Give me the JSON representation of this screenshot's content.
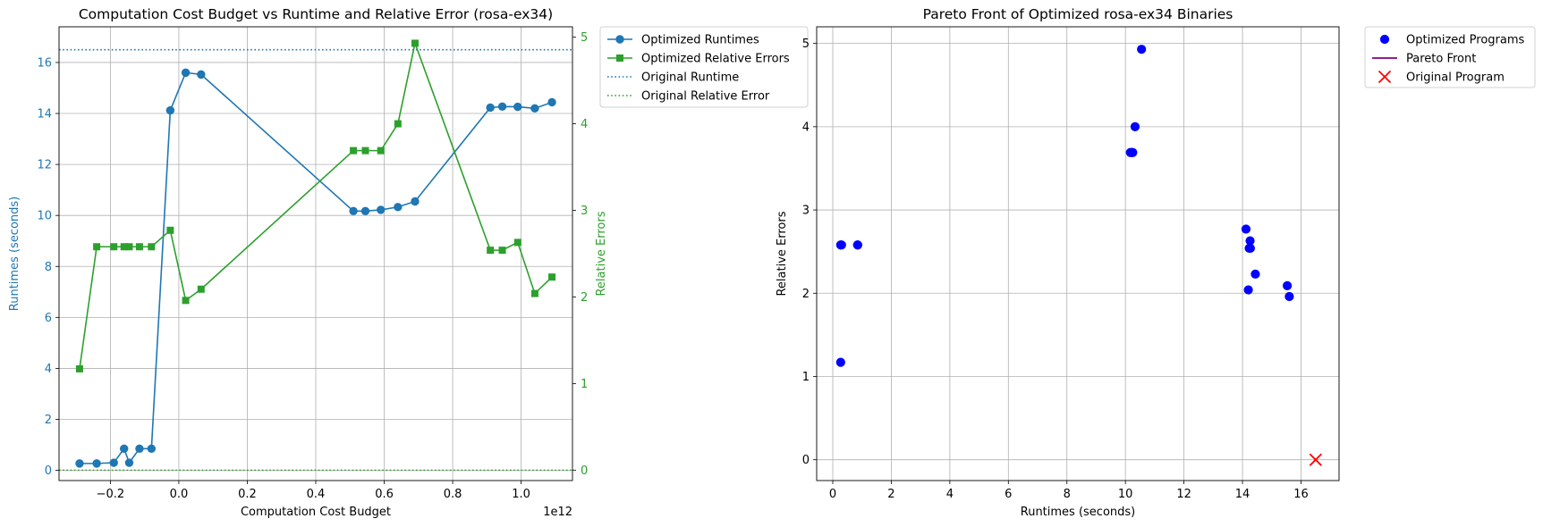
{
  "colors": {
    "runtime": "#1f77b4",
    "error": "#2ca02c",
    "scatter": "#0000ff",
    "pareto": "#800080",
    "original": "#ff0000",
    "grid": "#b0b0b0"
  },
  "chart_data": [
    {
      "type": "line",
      "title": "Computation Cost Budget vs Runtime and Relative Error (rosa-ex34)",
      "xlabel": "Computation Cost Budget",
      "x_offset_label": "1e12",
      "ylabel_left": "Runtimes (seconds)",
      "ylabel_right": "Relative Errors",
      "xlim": [
        -0.35,
        1.15
      ],
      "ylim_left": [
        -0.4,
        17.4
      ],
      "ylim_right": [
        -0.12,
        5.12
      ],
      "xticks": [
        -0.2,
        0.0,
        0.2,
        0.4,
        0.6,
        0.8,
        1.0
      ],
      "xtick_labels": [
        "−0.2",
        "0.0",
        "0.2",
        "0.4",
        "0.6",
        "0.8",
        "1.0"
      ],
      "yticks_left": [
        0,
        2,
        4,
        6,
        8,
        10,
        12,
        14,
        16
      ],
      "yticks_right": [
        0,
        1,
        2,
        3,
        4,
        5
      ],
      "grid": true,
      "legend_position": "outside-right",
      "x": [
        -0.29,
        -0.24,
        -0.19,
        -0.16,
        -0.145,
        -0.115,
        -0.08,
        -0.025,
        0.02,
        0.065,
        0.51,
        0.545,
        0.59,
        0.64,
        0.69,
        0.91,
        0.945,
        0.99,
        1.04,
        1.09
      ],
      "series": [
        {
          "name": "Optimized Runtimes",
          "axis": "left",
          "marker": "circle",
          "values": [
            0.27,
            0.27,
            0.3,
            0.85,
            0.3,
            0.85,
            0.85,
            14.12,
            15.6,
            15.53,
            10.17,
            10.17,
            10.22,
            10.33,
            10.55,
            14.23,
            14.27,
            14.26,
            14.2,
            14.44
          ]
        },
        {
          "name": "Optimized Relative Errors",
          "axis": "right",
          "marker": "square",
          "values": [
            1.17,
            2.58,
            2.58,
            2.58,
            2.58,
            2.58,
            2.58,
            2.77,
            1.96,
            2.09,
            3.69,
            3.69,
            3.69,
            4.0,
            4.93,
            2.54,
            2.54,
            2.63,
            2.04,
            2.23
          ]
        }
      ],
      "reference_lines": [
        {
          "name": "Original Runtime",
          "axis": "left",
          "value": 16.5,
          "style": "dotted"
        },
        {
          "name": "Original Relative Error",
          "axis": "right",
          "value": 0.0,
          "style": "dotted"
        }
      ]
    },
    {
      "type": "scatter",
      "title": "Pareto Front of Optimized rosa-ex34 Binaries",
      "xlabel": "Runtimes (seconds)",
      "ylabel": "Relative Errors",
      "xlim": [
        -0.55,
        17.3
      ],
      "ylim": [
        -0.25,
        5.2
      ],
      "xticks": [
        0,
        2,
        4,
        6,
        8,
        10,
        12,
        14,
        16
      ],
      "yticks": [
        0,
        1,
        2,
        3,
        4,
        5
      ],
      "grid": true,
      "legend_position": "outside-right",
      "series": [
        {
          "name": "Optimized Programs",
          "marker": "circle",
          "points": [
            [
              0.27,
              1.17
            ],
            [
              0.27,
              2.58
            ],
            [
              0.3,
              2.58
            ],
            [
              0.85,
              2.58
            ],
            [
              0.85,
              2.58
            ],
            [
              10.17,
              3.69
            ],
            [
              10.22,
              3.69
            ],
            [
              10.25,
              3.69
            ],
            [
              10.33,
              4.0
            ],
            [
              10.55,
              4.93
            ],
            [
              14.12,
              2.77
            ],
            [
              14.2,
              2.04
            ],
            [
              14.23,
              2.54
            ],
            [
              14.26,
              2.63
            ],
            [
              14.27,
              2.54
            ],
            [
              14.44,
              2.23
            ],
            [
              15.53,
              2.09
            ],
            [
              15.6,
              1.96
            ]
          ]
        },
        {
          "name": "Pareto Front",
          "marker": "line",
          "points": []
        },
        {
          "name": "Original Program",
          "marker": "x",
          "points": [
            [
              16.5,
              0.0
            ]
          ]
        }
      ]
    }
  ]
}
